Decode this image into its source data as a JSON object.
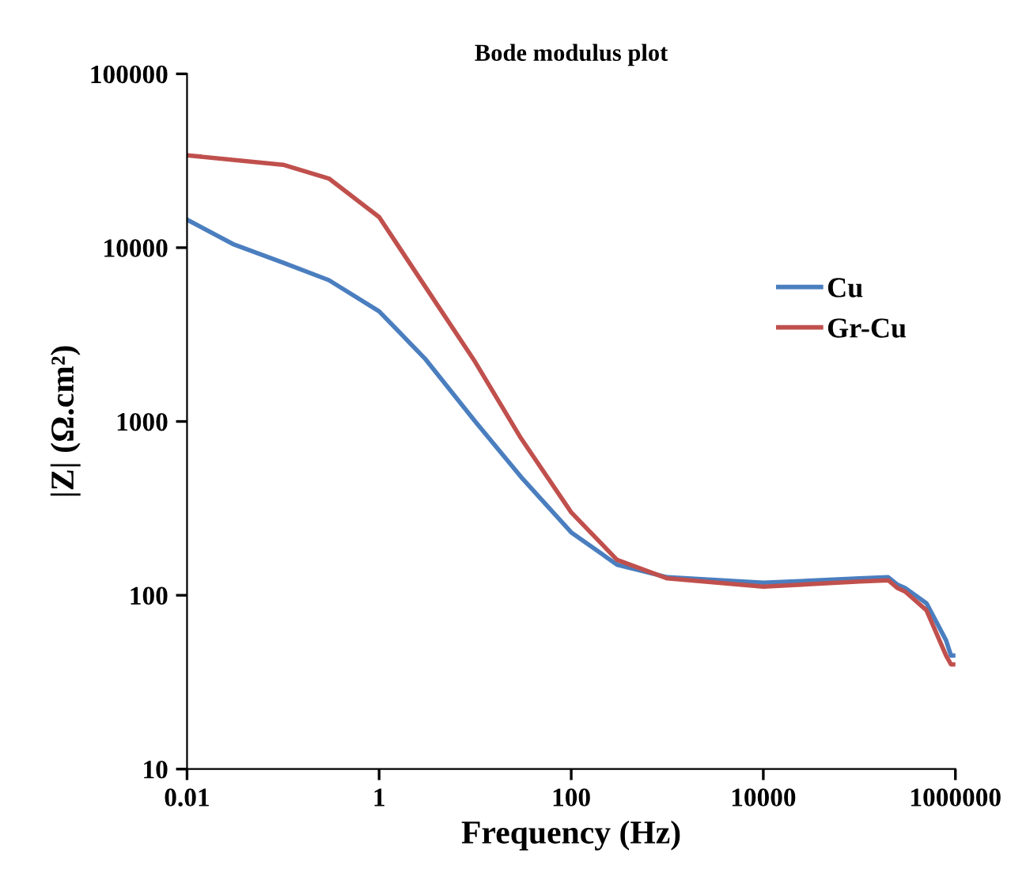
{
  "chart_data": {
    "type": "line",
    "title": "Bode modulus plot",
    "xlabel": "Frequency (Hz)",
    "ylabel": "|Z| (Ω.cm²)",
    "log": "xy",
    "xlim": [
      0.01,
      1000000
    ],
    "xticks": [
      {
        "value": 0.01,
        "label": "0.01"
      },
      1,
      100,
      10000,
      1000000
    ],
    "ylim": [
      10,
      100000
    ],
    "yticks": [
      10,
      100,
      1000,
      10000,
      100000
    ],
    "grid": false,
    "legend": "right",
    "marker": "none",
    "line_style": "solid",
    "series": [
      {
        "name": "Cu",
        "color": "#4a7ebf",
        "x": [
          0.01,
          0.03,
          0.1,
          0.3,
          1,
          3,
          10,
          30,
          100,
          300,
          1000,
          10000,
          100000,
          200000,
          250000,
          300000,
          500000,
          800000,
          900000,
          1000000
        ],
        "values": [
          14500,
          10500,
          8200,
          6500,
          4300,
          2300,
          1000,
          480,
          230,
          150,
          127,
          118,
          125,
          127,
          115,
          110,
          90,
          55,
          45,
          45
        ]
      },
      {
        "name": "Gr-Cu",
        "color": "#c0504d",
        "x": [
          0.01,
          0.1,
          0.3,
          1,
          3,
          10,
          30,
          100,
          300,
          1000,
          10000,
          100000,
          200000,
          250000,
          300000,
          500000,
          800000,
          900000,
          1000000
        ],
        "values": [
          34000,
          30000,
          25000,
          15000,
          6000,
          2200,
          800,
          300,
          160,
          125,
          112,
          120,
          122,
          110,
          105,
          82,
          45,
          40,
          40
        ]
      }
    ]
  }
}
